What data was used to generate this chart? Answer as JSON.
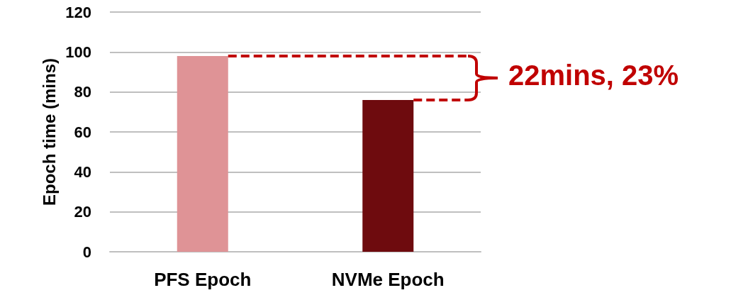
{
  "chart_data": {
    "type": "bar",
    "ylabel": "Epoch time (mins)",
    "categories": [
      "PFS Epoch",
      "NVMe Epoch"
    ],
    "values": [
      98,
      76
    ],
    "colors": [
      "#df9396",
      "#6e0b0e"
    ],
    "ylim": [
      0,
      120
    ],
    "yticks": [
      0,
      20,
      40,
      60,
      80,
      100,
      120
    ],
    "grid": "y",
    "annotations": [
      "22mins, 23%"
    ]
  }
}
